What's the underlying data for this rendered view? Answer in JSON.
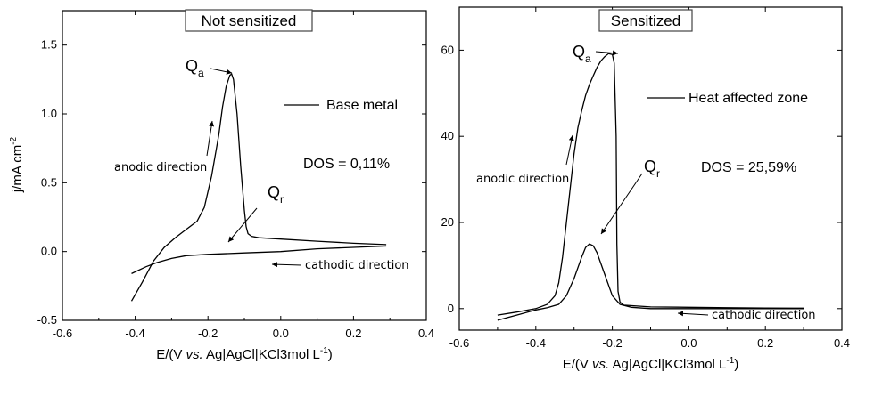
{
  "chart_data": [
    {
      "type": "line",
      "title": "Not sensitized",
      "xlabel": "E/(V vs. Ag|AgCl|KCl3mol L-1)",
      "xlabel_parts": [
        "E/(V ",
        "vs.",
        " Ag|AgCl|KCl3mol L",
        "-1",
        ")"
      ],
      "ylabel": "j/mA cm-2",
      "ylabel_parts": [
        "j/mA cm",
        "-2"
      ],
      "xlim": [
        -0.6,
        0.4
      ],
      "ylim": [
        -0.5,
        1.75
      ],
      "xticks": [
        -0.6,
        -0.4,
        -0.2,
        0.0,
        0.2,
        0.4
      ],
      "xtick_labels": [
        "-0.6",
        "-0.4",
        "-0.2",
        "0.0",
        "0.2",
        "0.4"
      ],
      "yticks": [
        -0.5,
        0.0,
        0.5,
        1.0,
        1.5
      ],
      "ytick_labels": [
        "-0.5",
        "0.0",
        "0.5",
        "1.0",
        "1.5"
      ],
      "legend": "Base metal",
      "dos": "DOS = 0,11%",
      "annotations": {
        "anodic": "anodic direction",
        "cathodic": "cathodic direction",
        "qa": "Q",
        "qa_sub": "a",
        "qr": "Q",
        "qr_sub": "r"
      },
      "series": [
        {
          "segment": "anodic",
          "x": [
            -0.41,
            -0.38,
            -0.35,
            -0.32,
            -0.29,
            -0.26,
            -0.23,
            -0.21,
            -0.19,
            -0.17,
            -0.16,
            -0.15,
            -0.14,
            -0.135,
            -0.13,
            -0.12,
            -0.11,
            -0.1,
            -0.095,
            -0.09,
            -0.08,
            -0.06,
            0.0,
            0.1,
            0.2,
            0.29
          ],
          "y": [
            -0.36,
            -0.22,
            -0.07,
            0.03,
            0.1,
            0.16,
            0.22,
            0.32,
            0.55,
            0.85,
            1.05,
            1.2,
            1.28,
            1.29,
            1.25,
            1.0,
            0.62,
            0.3,
            0.18,
            0.13,
            0.11,
            0.1,
            0.09,
            0.075,
            0.06,
            0.05
          ]
        },
        {
          "segment": "cathodic",
          "x": [
            0.29,
            0.2,
            0.1,
            0.0,
            -0.1,
            -0.2,
            -0.26,
            -0.3,
            -0.34,
            -0.37,
            -0.41
          ],
          "y": [
            0.04,
            0.03,
            0.02,
            0.0,
            -0.01,
            -0.02,
            -0.03,
            -0.05,
            -0.08,
            -0.11,
            -0.16
          ]
        }
      ]
    },
    {
      "type": "line",
      "title": "Sensitized",
      "xlabel": "E/(V vs. Ag|AgCl|KCl3mol L-1)",
      "xlabel_parts": [
        "E/(V ",
        "vs.",
        " Ag|AgCl|KCl3mol L",
        "-1",
        ")"
      ],
      "xlim": [
        -0.6,
        0.4
      ],
      "ylim": [
        -5,
        70
      ],
      "xticks": [
        -0.6,
        -0.4,
        -0.2,
        0.0,
        0.2,
        0.4
      ],
      "xtick_labels": [
        "-0.6",
        "-0.4",
        "-0.2",
        "0.0",
        "0.2",
        "0.4"
      ],
      "yticks": [
        0,
        20,
        40,
        60
      ],
      "ytick_labels": [
        "0",
        "20",
        "40",
        "60"
      ],
      "legend": "Heat affected zone",
      "dos": "DOS = 25,59%",
      "annotations": {
        "anodic": "anodic direction",
        "cathodic": "cathodic direction",
        "qa": "Q",
        "qa_sub": "a",
        "qr": "Q",
        "qr_sub": "r"
      },
      "series": [
        {
          "segment": "anodic",
          "x": [
            -0.5,
            -0.45,
            -0.4,
            -0.37,
            -0.35,
            -0.34,
            -0.33,
            -0.32,
            -0.31,
            -0.3,
            -0.29,
            -0.28,
            -0.27,
            -0.26,
            -0.25,
            -0.24,
            -0.23,
            -0.22,
            -0.21,
            -0.2,
            -0.195,
            -0.19,
            -0.188,
            -0.185,
            -0.18,
            -0.17,
            -0.1,
            0.0,
            0.1,
            0.2,
            0.3
          ],
          "y": [
            -1.5,
            -0.8,
            0.0,
            1.0,
            3.0,
            6.0,
            12.0,
            20.0,
            28.0,
            36.0,
            42.0,
            46.0,
            49.5,
            52.0,
            54.0,
            56.0,
            57.5,
            58.5,
            59.2,
            59.0,
            57.0,
            40.0,
            15.0,
            4.0,
            1.5,
            0.8,
            0.4,
            0.3,
            0.2,
            0.15,
            0.1
          ]
        },
        {
          "segment": "cathodic",
          "x": [
            0.3,
            0.1,
            0.0,
            -0.1,
            -0.15,
            -0.18,
            -0.2,
            -0.22,
            -0.24,
            -0.25,
            -0.26,
            -0.27,
            -0.28,
            -0.3,
            -0.32,
            -0.34,
            -0.37,
            -0.4,
            -0.45,
            -0.5
          ],
          "y": [
            0.0,
            0.0,
            0.0,
            0.0,
            0.3,
            1.0,
            3.0,
            8.0,
            13.0,
            14.6,
            15.0,
            14.2,
            12.0,
            7.0,
            3.0,
            1.0,
            0.2,
            -0.3,
            -1.5,
            -2.7
          ]
        }
      ]
    }
  ]
}
